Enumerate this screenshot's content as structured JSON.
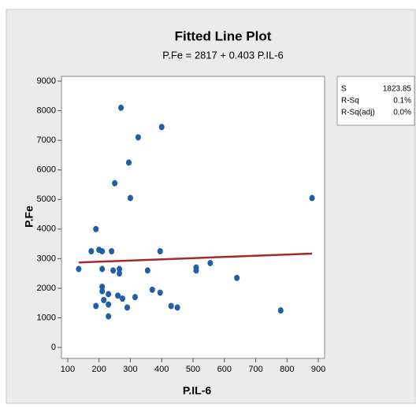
{
  "chart_data": {
    "type": "scatter",
    "title": "Fitted Line Plot",
    "subtitle": "P.Fe = 2817 + 0.403 P.IL-6",
    "x_label": "P.IL-6",
    "y_label": "P.Fe",
    "xlim": [
      80,
      920
    ],
    "ylim": [
      -370,
      9160
    ],
    "xticks": [
      100,
      200,
      300,
      400,
      500,
      600,
      700,
      800,
      900
    ],
    "yticks": [
      0,
      1000,
      2000,
      3000,
      4000,
      5000,
      6000,
      7000,
      8000,
      9000
    ],
    "series": [
      {
        "color": "#1f5fa8",
        "x": [
          135,
          175,
          190,
          190,
          200,
          210,
          210,
          210,
          210,
          215,
          230,
          230,
          230,
          240,
          245,
          250,
          260,
          265,
          265,
          270,
          275,
          290,
          295,
          300,
          315,
          325,
          355,
          370,
          395,
          395,
          400,
          430,
          450,
          510,
          510,
          555,
          640,
          780,
          880
        ],
        "values": [
          2650,
          3250,
          4000,
          1400,
          3300,
          3250,
          2650,
          2050,
          1900,
          1600,
          1800,
          1450,
          1050,
          3250,
          2600,
          5550,
          1750,
          2500,
          2650,
          8100,
          1650,
          1350,
          6250,
          5050,
          1700,
          7100,
          2600,
          1950,
          1850,
          3250,
          7450,
          1400,
          1350,
          2700,
          2600,
          2850,
          2350,
          1250,
          5050
        ]
      }
    ],
    "fit": {
      "color": "#a52a2a",
      "x": [
        135,
        880
      ],
      "values": [
        2871.4,
        3171.6
      ]
    },
    "stats": [
      {
        "label": "S",
        "value": "1823.85"
      },
      {
        "label": "R-Sq",
        "value": "0.1%"
      },
      {
        "label": "R-Sq(adj)",
        "value": "0.0%"
      }
    ]
  }
}
